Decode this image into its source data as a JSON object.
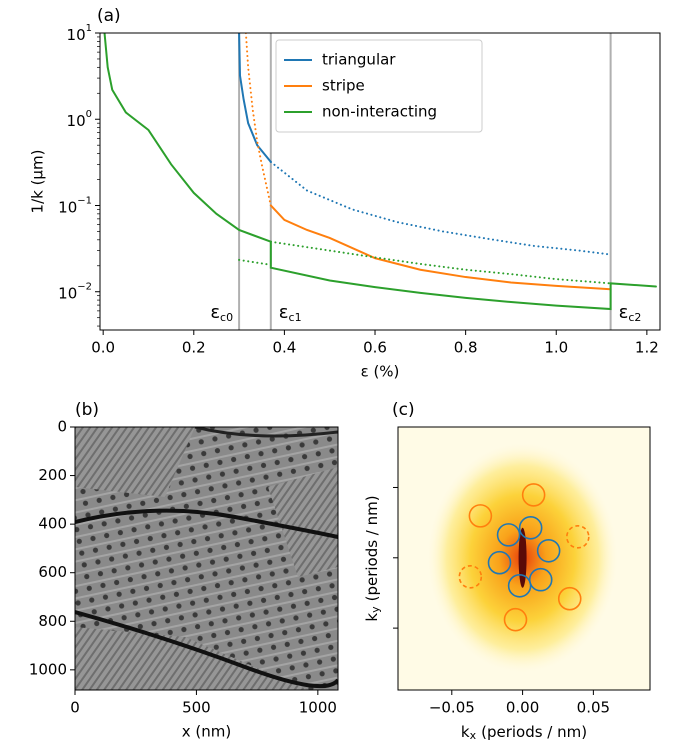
{
  "chart_data": [
    {
      "type": "line",
      "panel": "(a)",
      "xlabel": "ε (%)",
      "ylabel": "1/k (µm)",
      "yscale": "log",
      "xlim": [
        -0.007,
        1.229
      ],
      "ylim": [
        0.0036,
        10
      ],
      "xticks": [
        {
          "value": 0,
          "label": "0.0"
        },
        0.2,
        0.4,
        0.6,
        0.8,
        {
          "value": 1,
          "label": "1.0"
        },
        1.2
      ],
      "yticks": [
        {
          "value": 0.01,
          "label": "10",
          "exponent": "−2"
        },
        {
          "value": 0.1,
          "label": "10",
          "exponent": "−1"
        },
        {
          "value": 1,
          "label": "10",
          "exponent": "0"
        },
        {
          "value": 10,
          "label": "10",
          "exponent": "1"
        }
      ],
      "legend": "upper center",
      "vlines": [
        {
          "x": 0.3,
          "symbol": "ε",
          "subscript": "c0",
          "side": "left"
        },
        {
          "x": 0.37,
          "symbol": "ε",
          "subscript": "c1",
          "side": "right"
        },
        {
          "x": 1.12,
          "symbol": "ε",
          "subscript": "c2",
          "side": "right"
        }
      ],
      "vline_color": "#b0b0b0",
      "series": [
        {
          "name": "triangular",
          "color": "#1f77b4",
          "segments": [
            {
              "style": "solid",
              "x": [
                0.3,
                0.302,
                0.31,
                0.32,
                0.34,
                0.37
              ],
              "values": [
                10,
                3.2,
                1.7,
                0.9,
                0.5,
                0.32
              ]
            },
            {
              "style": "dotted",
              "x": [
                0.37,
                0.45,
                0.55,
                0.65,
                0.75,
                0.85,
                0.95,
                1.05,
                1.12
              ],
              "values": [
                0.32,
                0.149,
                0.09,
                0.064,
                0.05,
                0.041,
                0.034,
                0.03,
                0.027
              ]
            }
          ]
        },
        {
          "name": "stripe",
          "color": "#ff7f0e",
          "segments": [
            {
              "style": "dotted",
              "x": [
                0.315,
                0.32,
                0.33,
                0.34,
                0.35,
                0.37
              ],
              "values": [
                10,
                4,
                1.3,
                0.55,
                0.3,
                0.1
              ]
            },
            {
              "style": "solid",
              "x": [
                0.37,
                0.4,
                0.45,
                0.5,
                0.6,
                0.7,
                0.8,
                0.9,
                1.0,
                1.12
              ],
              "values": [
                0.1,
                0.068,
                0.052,
                0.042,
                0.0245,
                0.018,
                0.0148,
                0.0128,
                0.0117,
                0.0107
              ]
            }
          ]
        },
        {
          "name": "non-interacting",
          "color": "#2ca02c",
          "segments": [
            {
              "style": "solid",
              "x": [
                0.003,
                0.01,
                0.02,
                0.05,
                0.1,
                0.15,
                0.2,
                0.25,
                0.3,
                0.37,
                0.37,
                0.5,
                0.6,
                0.7,
                0.8,
                0.9,
                1.0,
                1.12,
                1.12,
                1.22
              ],
              "values": [
                10,
                4,
                2.2,
                1.2,
                0.75,
                0.3,
                0.14,
                0.08,
                0.052,
                0.038,
                0.019,
                0.0135,
                0.0113,
                0.0097,
                0.0085,
                0.0076,
                0.0069,
                0.0063,
                0.0125,
                0.0115
              ]
            },
            {
              "style": "dotted",
              "x": [
                0.3,
                0.37
              ],
              "values": [
                0.0234,
                0.0205
              ]
            },
            {
              "style": "dotted",
              "x": [
                0.37,
                0.5,
                0.6,
                0.7,
                0.8,
                0.9,
                1.0,
                1.12
              ],
              "values": [
                0.038,
                0.03,
                0.025,
                0.021,
                0.018,
                0.016,
                0.014,
                0.0125
              ]
            }
          ]
        }
      ]
    },
    {
      "type": "image",
      "panel": "(b)",
      "xlabel": "x (nm)",
      "xlim": [
        0,
        1083
      ],
      "ylim": [
        1083,
        0
      ],
      "xticks": [
        0,
        500,
        1000
      ],
      "yticks": [
        0,
        200,
        400,
        600,
        800,
        1000
      ]
    },
    {
      "type": "scatter",
      "panel": "(c)",
      "xlabel": {
        "symbol": "k",
        "subscript": "x",
        "text": "(periods / nm)"
      },
      "ylabel": {
        "symbol": "k",
        "subscript": "y",
        "text": "(periods / nm)"
      },
      "xlim": [
        -0.088,
        0.09
      ],
      "ylim": [
        -0.094,
        0.093
      ],
      "xticks": [
        {
          "value": -0.05,
          "label": "−0.05"
        },
        {
          "value": 0,
          "label": "0.00"
        },
        {
          "value": 0.05,
          "label": "0.05"
        }
      ],
      "yticks": [
        -0.05,
        0,
        0.05
      ],
      "ytick_labels": false,
      "series": [
        {
          "color": "#1f77b4",
          "style": "solid",
          "x": [
            -0.0099,
            0.0057,
            0.0184,
            0.0128,
            -0.0021,
            -0.0163
          ],
          "values": [
            0.0163,
            0.0213,
            0.005,
            -0.0156,
            -0.0199,
            -0.0035
          ]
        },
        {
          "color": "#ff7f0e",
          "style": "solid",
          "x": [
            0.0078,
            -0.0298,
            0.0333,
            -0.005
          ],
          "values": [
            0.0447,
            0.0298,
            -0.0291,
            -0.044
          ]
        },
        {
          "color": "#ff7f0e",
          "style": "dashed",
          "x": [
            0.039,
            -0.0369
          ],
          "values": [
            0.0149,
            -0.0135
          ]
        }
      ]
    }
  ]
}
